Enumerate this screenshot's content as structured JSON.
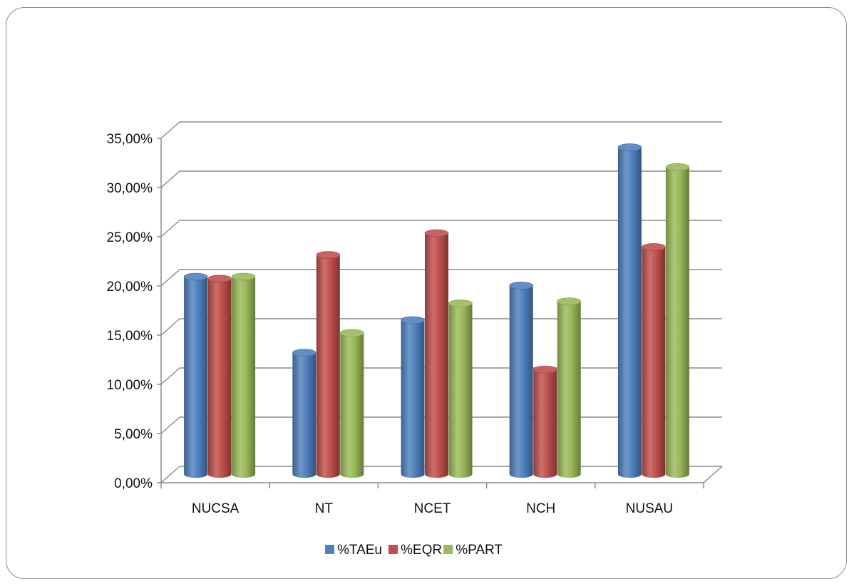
{
  "chart_data": {
    "type": "bar",
    "variant": "3d-cylinder-clustered",
    "title": "",
    "xlabel": "",
    "ylabel": "",
    "categories": [
      "NUCSA",
      "NT",
      "NCET",
      "NCH",
      "NUSAU"
    ],
    "series": [
      {
        "name": "%TAEu",
        "color": "#4f81bd",
        "values": [
          20.0,
          12.3,
          15.6,
          19.1,
          33.1
        ]
      },
      {
        "name": "%EQR",
        "color": "#c0504d",
        "values": [
          19.8,
          22.2,
          24.4,
          10.6,
          23.0
        ]
      },
      {
        "name": "%PART",
        "color": "#9bbb59",
        "values": [
          20.0,
          14.3,
          17.3,
          17.5,
          31.1
        ]
      }
    ],
    "ylim": [
      0,
      35
    ],
    "ytick_values": [
      0,
      5,
      10,
      15,
      20,
      25,
      30,
      35
    ],
    "ytick_labels": [
      "0,00%",
      "5,00%",
      "10,00%",
      "15,00%",
      "20,00%",
      "25,00%",
      "30,00%",
      "35,00%"
    ],
    "grid": true,
    "legend_position": "bottom"
  }
}
